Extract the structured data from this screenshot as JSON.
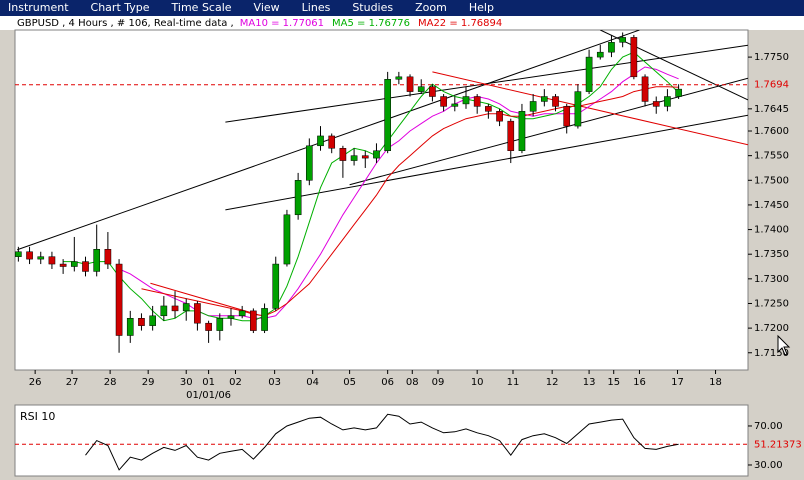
{
  "menu": [
    "Instrument",
    "Chart Type",
    "Time Scale",
    "View",
    "Lines",
    "Studies",
    "Zoom",
    "Help"
  ],
  "chart_data": [
    {
      "type": "candlestick",
      "title": "GBPUSD , 4 Hours , # 106, Real-time data ,",
      "up_color": "#00a000",
      "down_color": "#d00000",
      "open": [
        1.7345,
        1.7355,
        1.734,
        1.7345,
        1.733,
        1.7325,
        1.7335,
        1.7315,
        1.736,
        1.733,
        1.7185,
        1.722,
        1.7205,
        1.7225,
        1.7245,
        1.7235,
        1.725,
        1.721,
        1.7195,
        1.722,
        1.7225,
        1.7235,
        1.7195,
        1.724,
        1.733,
        1.743,
        1.75,
        1.757,
        1.759,
        1.7565,
        1.754,
        1.755,
        1.7545,
        1.756,
        1.7705,
        1.771,
        1.768,
        1.769,
        1.767,
        1.765,
        1.7655,
        1.767,
        1.765,
        1.764,
        1.762,
        1.756,
        1.764,
        1.766,
        1.767,
        1.765,
        1.761,
        1.768,
        1.775,
        1.776,
        1.778,
        1.779,
        1.771,
        1.766,
        1.765,
        1.767
      ],
      "high": [
        1.7365,
        1.7365,
        1.7355,
        1.7355,
        1.734,
        1.7385,
        1.7345,
        1.741,
        1.7395,
        1.734,
        1.7235,
        1.723,
        1.7245,
        1.7265,
        1.7275,
        1.726,
        1.7255,
        1.7215,
        1.723,
        1.724,
        1.7245,
        1.724,
        1.725,
        1.7345,
        1.744,
        1.7515,
        1.7585,
        1.761,
        1.7595,
        1.757,
        1.7565,
        1.756,
        1.7575,
        1.772,
        1.772,
        1.7715,
        1.7705,
        1.7695,
        1.7675,
        1.767,
        1.769,
        1.7675,
        1.7655,
        1.7645,
        1.7625,
        1.7655,
        1.7675,
        1.7685,
        1.7675,
        1.7655,
        1.7695,
        1.7765,
        1.7775,
        1.7795,
        1.78,
        1.7795,
        1.7715,
        1.767,
        1.7685,
        1.7695
      ],
      "low": [
        1.7335,
        1.733,
        1.733,
        1.732,
        1.731,
        1.7315,
        1.7305,
        1.7305,
        1.732,
        1.715,
        1.717,
        1.7195,
        1.7195,
        1.7215,
        1.722,
        1.7215,
        1.7195,
        1.717,
        1.7175,
        1.7205,
        1.722,
        1.719,
        1.719,
        1.7235,
        1.7325,
        1.742,
        1.749,
        1.756,
        1.7555,
        1.7505,
        1.753,
        1.7525,
        1.7535,
        1.7555,
        1.7695,
        1.767,
        1.7675,
        1.766,
        1.764,
        1.764,
        1.7645,
        1.7635,
        1.7625,
        1.761,
        1.7535,
        1.7555,
        1.763,
        1.765,
        1.764,
        1.7595,
        1.7605,
        1.7675,
        1.7745,
        1.775,
        1.777,
        1.7705,
        1.765,
        1.7635,
        1.764,
        1.7665
      ],
      "close": [
        1.7355,
        1.734,
        1.7345,
        1.733,
        1.7325,
        1.7335,
        1.7315,
        1.736,
        1.733,
        1.7185,
        1.722,
        1.7205,
        1.7225,
        1.7245,
        1.7235,
        1.725,
        1.721,
        1.7195,
        1.722,
        1.7225,
        1.7235,
        1.7195,
        1.724,
        1.733,
        1.743,
        1.75,
        1.757,
        1.759,
        1.7565,
        1.754,
        1.755,
        1.7545,
        1.756,
        1.7705,
        1.771,
        1.768,
        1.769,
        1.767,
        1.765,
        1.7655,
        1.767,
        1.765,
        1.764,
        1.762,
        1.756,
        1.764,
        1.766,
        1.767,
        1.765,
        1.761,
        1.768,
        1.775,
        1.776,
        1.778,
        1.779,
        1.771,
        1.766,
        1.765,
        1.767,
        1.7685
      ],
      "series": [
        {
          "name": "MA10 = 1.77061",
          "color": "#e000e0",
          "values": [
            null,
            null,
            null,
            null,
            null,
            null,
            null,
            null,
            null,
            1.732,
            1.731,
            1.7295,
            1.728,
            1.727,
            1.726,
            1.725,
            1.7235,
            1.7225,
            1.7225,
            1.7225,
            1.7225,
            1.722,
            1.722,
            1.7225,
            1.725,
            1.728,
            1.7315,
            1.735,
            1.739,
            1.743,
            1.7465,
            1.75,
            1.7535,
            1.7565,
            1.758,
            1.76,
            1.7615,
            1.763,
            1.764,
            1.7655,
            1.7665,
            1.767,
            1.7665,
            1.7655,
            1.764,
            1.7635,
            1.763,
            1.7635,
            1.7635,
            1.7635,
            1.7635,
            1.765,
            1.7665,
            1.768,
            1.77,
            1.7715,
            1.773,
            1.7725,
            1.7715,
            1.7706
          ]
        },
        {
          "name": "MA5 = 1.76776",
          "color": "#00b000",
          "values": [
            null,
            null,
            null,
            null,
            1.7335,
            1.7335,
            1.733,
            1.7335,
            1.7335,
            1.7305,
            1.728,
            1.726,
            1.7235,
            1.7215,
            1.722,
            1.7235,
            1.7235,
            1.7225,
            1.722,
            1.722,
            1.7215,
            1.7215,
            1.7225,
            1.724,
            1.7285,
            1.7345,
            1.7415,
            1.7485,
            1.7535,
            1.755,
            1.7565,
            1.756,
            1.755,
            1.758,
            1.761,
            1.764,
            1.767,
            1.7695,
            1.768,
            1.767,
            1.7665,
            1.766,
            1.7655,
            1.7645,
            1.763,
            1.7625,
            1.7625,
            1.763,
            1.7635,
            1.7645,
            1.7655,
            1.767,
            1.769,
            1.7725,
            1.775,
            1.776,
            1.774,
            1.772,
            1.77,
            1.7678
          ]
        },
        {
          "name": "MA22 = 1.76894",
          "color": "#e00000",
          "values": [
            null,
            null,
            null,
            null,
            null,
            null,
            null,
            null,
            null,
            null,
            null,
            1.728,
            1.7275,
            1.727,
            1.7265,
            1.726,
            1.7255,
            1.725,
            1.7245,
            1.724,
            1.7235,
            1.7228,
            1.7225,
            1.7235,
            1.725,
            1.727,
            1.729,
            1.732,
            1.735,
            1.738,
            1.741,
            1.744,
            1.747,
            1.7505,
            1.753,
            1.755,
            1.757,
            1.759,
            1.7605,
            1.7615,
            1.7625,
            1.763,
            1.7635,
            1.7635,
            1.763,
            1.763,
            1.7635,
            1.764,
            1.7645,
            1.765,
            1.765,
            1.7655,
            1.766,
            1.7665,
            1.767,
            1.768,
            1.7685,
            1.769,
            1.769,
            1.7689
          ]
        }
      ],
      "trendlines": [
        {
          "color": "#000000",
          "x": [
            -0.1,
            55.5
          ],
          "y": [
            1.7359,
            1.7805
          ]
        },
        {
          "color": "#000000",
          "x": [
            18.5,
            65.2
          ],
          "y": [
            1.7618,
            1.7774
          ]
        },
        {
          "color": "#000000",
          "x": [
            18.5,
            65.2
          ],
          "y": [
            1.744,
            1.7632
          ]
        },
        {
          "color": "#000000",
          "x": [
            29.6,
            65.2
          ],
          "y": [
            1.7491,
            1.7707
          ]
        },
        {
          "color": "#000000",
          "x": [
            52,
            65.2
          ],
          "y": [
            1.7805,
            1.7663
          ]
        },
        {
          "color": "#e00000",
          "x": [
            11.8,
            21.6
          ],
          "y": [
            1.7291,
            1.7226
          ]
        },
        {
          "color": "#e00000",
          "x": [
            37,
            65.2
          ],
          "y": [
            1.772,
            1.7572
          ]
        }
      ],
      "last_price": 1.7694,
      "last_color": "#e00000",
      "xlim": [
        -0.3,
        65.2
      ],
      "xticks": [
        {
          "value": 1.5,
          "label": "26"
        },
        {
          "value": 4.8,
          "label": "27"
        },
        {
          "value": 8.2,
          "label": "28"
        },
        {
          "value": 11.6,
          "label": "29"
        },
        {
          "value": 15,
          "label": "30"
        },
        {
          "value": 17,
          "label": "01"
        },
        {
          "value": 19.4,
          "label": "02"
        },
        {
          "value": 22.9,
          "label": "03"
        },
        {
          "value": 26.3,
          "label": "04"
        },
        {
          "value": 29.6,
          "label": "05"
        },
        {
          "value": 33,
          "label": "06"
        },
        {
          "value": 35.2,
          "label": "08"
        },
        {
          "value": 37.5,
          "label": "09"
        },
        {
          "value": 41,
          "label": "10"
        },
        {
          "value": 44.2,
          "label": "11"
        },
        {
          "value": 47.7,
          "label": "12"
        },
        {
          "value": 51,
          "label": "13"
        },
        {
          "value": 53.2,
          "label": "15"
        },
        {
          "value": 55.5,
          "label": "16"
        },
        {
          "value": 58.9,
          "label": "17"
        },
        {
          "value": 62.3,
          "label": "18"
        }
      ],
      "date_note": {
        "value": 17,
        "label": "01/01/06"
      },
      "ylim": [
        1.7115,
        1.7805
      ],
      "yticks": [
        {
          "value": 1.715,
          "label": "1.7150"
        },
        {
          "value": 1.72,
          "label": "1.7200"
        },
        {
          "value": 1.725,
          "label": "1.7250"
        },
        {
          "value": 1.73,
          "label": "1.7300"
        },
        {
          "value": 1.735,
          "label": "1.7350"
        },
        {
          "value": 1.74,
          "label": "1.7400"
        },
        {
          "value": 1.745,
          "label": "1.7450"
        },
        {
          "value": 1.75,
          "label": "1.7500"
        },
        {
          "value": 1.755,
          "label": "1.7550"
        },
        {
          "value": 1.76,
          "label": "1.7600"
        },
        1.7645,
        {
          "value": 1.775,
          "label": "1.7750"
        }
      ]
    },
    {
      "type": "line",
      "title": "RSI 10",
      "color": "#000000",
      "values": [
        null,
        null,
        null,
        null,
        null,
        null,
        40,
        55,
        50,
        25,
        38,
        35,
        42,
        48,
        45,
        50,
        38,
        35,
        42,
        44,
        46,
        36,
        48,
        62,
        70,
        74,
        78,
        79,
        72,
        66,
        68,
        66,
        68,
        82,
        80,
        72,
        74,
        68,
        63,
        64,
        67,
        63,
        60,
        55,
        40,
        56,
        60,
        62,
        58,
        52,
        62,
        72,
        74,
        76,
        77,
        58,
        47,
        46,
        49,
        51.2
      ],
      "last_value": 51.21373,
      "last_color": "#e00000",
      "xlim": [
        -0.3,
        65.2
      ],
      "ylim": [
        18.7,
        91.5
      ],
      "yticks": [
        {
          "value": 70,
          "label": "70.00"
        },
        {
          "value": 30,
          "label": "30.00"
        }
      ]
    }
  ]
}
